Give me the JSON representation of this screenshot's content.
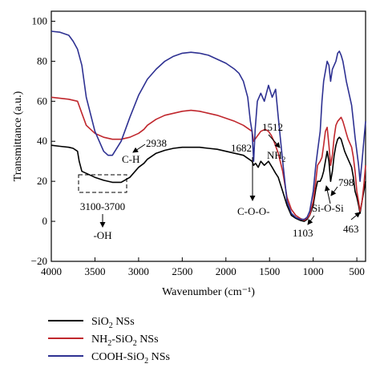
{
  "chart_data": {
    "type": "line",
    "xlabel": "Wavenumber (cm⁻¹)",
    "ylabel": "Transmittance (a.u.)",
    "xlim": [
      4000,
      400
    ],
    "ylim": [
      -20,
      105
    ],
    "x_reversed": true,
    "x_ticks": [
      4000,
      3500,
      3000,
      2500,
      2000,
      1500,
      1000,
      500
    ],
    "y_ticks": [
      -20,
      0,
      20,
      40,
      60,
      80,
      100
    ],
    "grid": false,
    "legend_position": "below-left",
    "series": [
      {
        "name": "SiO₂ NSs",
        "legend_main": "SiO",
        "legend_sub": "2",
        "legend_tail": " NSs",
        "color": "#000000",
        "x": [
          4000,
          3900,
          3800,
          3750,
          3700,
          3680,
          3650,
          3600,
          3500,
          3400,
          3300,
          3200,
          3100,
          3000,
          2938,
          2900,
          2800,
          2700,
          2600,
          2500,
          2400,
          2300,
          2200,
          2100,
          2000,
          1900,
          1800,
          1700,
          1682,
          1660,
          1630,
          1600,
          1560,
          1512,
          1470,
          1430,
          1400,
          1350,
          1300,
          1250,
          1200,
          1150,
          1103,
          1070,
          1040,
          1000,
          970,
          950,
          920,
          900,
          880,
          860,
          840,
          820,
          800,
          780,
          760,
          740,
          720,
          700,
          680,
          660,
          640,
          620,
          600,
          560,
          540,
          520,
          500,
          480,
          463,
          440,
          420,
          400
        ],
        "y": [
          38,
          37.5,
          37,
          36.5,
          35,
          30,
          25,
          24,
          22,
          20.5,
          19.5,
          19.5,
          22,
          27,
          29,
          31,
          34,
          35.5,
          36.5,
          37,
          37,
          37,
          36.5,
          36,
          35,
          34,
          33,
          30,
          28,
          29,
          27,
          30,
          28,
          30,
          27,
          24,
          22,
          15,
          8,
          3,
          1.5,
          0.5,
          0,
          1,
          3,
          8,
          16,
          20,
          20,
          22,
          25,
          30,
          35,
          30,
          20,
          25,
          33,
          38,
          41,
          42,
          41,
          38,
          35,
          33,
          31,
          27,
          22,
          15,
          12,
          8,
          4,
          10,
          15,
          20
        ]
      },
      {
        "name": "NH₂-SiO₂ NSs",
        "legend_main": "NH",
        "legend_sub": "2",
        "legend_mid": "-SiO",
        "legend_sub2": "2",
        "legend_tail": " NSs",
        "color": "#c0272d",
        "x": [
          4000,
          3900,
          3800,
          3700,
          3650,
          3600,
          3500,
          3400,
          3300,
          3200,
          3100,
          3000,
          2938,
          2900,
          2800,
          2700,
          2600,
          2500,
          2400,
          2300,
          2200,
          2100,
          2000,
          1900,
          1800,
          1700,
          1682,
          1650,
          1600,
          1550,
          1512,
          1480,
          1450,
          1400,
          1350,
          1300,
          1250,
          1200,
          1150,
          1103,
          1070,
          1040,
          1000,
          970,
          950,
          920,
          900,
          880,
          860,
          840,
          820,
          800,
          780,
          760,
          740,
          720,
          700,
          680,
          660,
          640,
          620,
          600,
          560,
          540,
          520,
          500,
          480,
          463,
          440,
          420,
          400
        ],
        "y": [
          62,
          61.5,
          61,
          60,
          54,
          48,
          44,
          42,
          41,
          41,
          42,
          44,
          46,
          48,
          51,
          53,
          54,
          55,
          55.5,
          55,
          54,
          53,
          51.5,
          50,
          48,
          45,
          40,
          42,
          45,
          46,
          45,
          43,
          40,
          34,
          25,
          12,
          6,
          3,
          1.5,
          0.5,
          1.5,
          3,
          10,
          20,
          28,
          30,
          32,
          38,
          45,
          47,
          38,
          28,
          33,
          42,
          48,
          50,
          51,
          52,
          50,
          47,
          44,
          41,
          37,
          32,
          25,
          15,
          10,
          5,
          10,
          18,
          28
        ]
      },
      {
        "name": "COOH-SiO₂ NSs",
        "legend_main": "COOH-SiO",
        "legend_sub": "2",
        "legend_tail": " NSs",
        "color": "#2e3192",
        "x": [
          4000,
          3900,
          3800,
          3750,
          3700,
          3650,
          3600,
          3500,
          3400,
          3350,
          3300,
          3200,
          3100,
          3000,
          2900,
          2800,
          2700,
          2600,
          2500,
          2400,
          2300,
          2200,
          2100,
          2000,
          1900,
          1850,
          1800,
          1750,
          1720,
          1700,
          1682,
          1665,
          1640,
          1600,
          1560,
          1512,
          1470,
          1430,
          1400,
          1350,
          1300,
          1250,
          1200,
          1150,
          1103,
          1070,
          1040,
          1000,
          970,
          950,
          920,
          900,
          880,
          860,
          840,
          820,
          800,
          780,
          760,
          740,
          720,
          700,
          680,
          660,
          640,
          620,
          600,
          560,
          540,
          520,
          500,
          480,
          463,
          440,
          420,
          400
        ],
        "y": [
          95,
          94.5,
          93,
          90,
          86,
          78,
          62,
          45,
          35,
          33,
          33,
          40,
          52,
          63,
          71,
          76,
          80,
          82.5,
          84,
          84.5,
          84,
          83,
          81,
          79,
          76,
          74,
          70,
          62,
          50,
          45,
          30,
          46,
          60,
          64,
          60,
          68,
          62,
          66,
          52,
          30,
          10,
          4,
          2,
          1,
          1,
          2,
          5,
          15,
          28,
          35,
          45,
          60,
          70,
          75,
          80,
          78,
          70,
          76,
          78,
          80,
          84,
          85,
          83,
          80,
          75,
          70,
          66,
          58,
          50,
          42,
          35,
          28,
          20,
          30,
          40,
          50
        ]
      }
    ],
    "annotations": {
      "a_oh": "-OH",
      "a_range": "3100-3700",
      "a_ch": "C-H",
      "a_2938": "2938",
      "a_1682": "1682",
      "a_coo": "C-O-O-",
      "a_1512": "1512",
      "a_nh_main": "NH",
      "a_nh_sub": "2",
      "a_sios": "Si-O-Si",
      "a_798": "798",
      "a_1103": "1103",
      "a_463": "463"
    }
  }
}
